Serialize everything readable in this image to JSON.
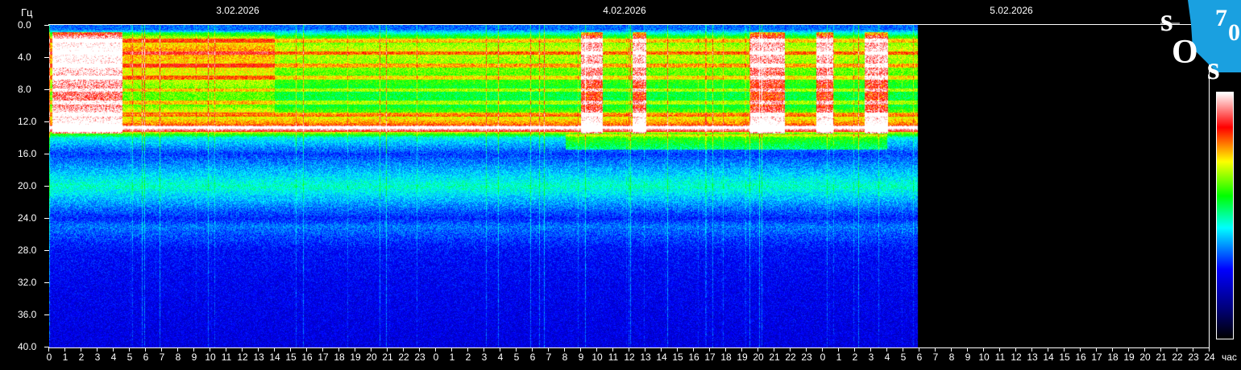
{
  "chart_data": {
    "type": "heatmap",
    "ylabel": "Гц",
    "xlabel": "час",
    "ylim": [
      0,
      40
    ],
    "y_ticks": [
      "0.0",
      "4.0",
      "8.0",
      "12.0",
      "16.0",
      "20.0",
      "24.0",
      "28.0",
      "32.0",
      "36.0",
      "40.0"
    ],
    "x_ticks": [
      "0",
      "1",
      "2",
      "3",
      "4",
      "5",
      "6",
      "7",
      "8",
      "9",
      "10",
      "11",
      "12",
      "13",
      "14",
      "15",
      "16",
      "17",
      "18",
      "19",
      "20",
      "21",
      "22",
      "23",
      "0",
      "1",
      "2",
      "3",
      "4",
      "5",
      "6",
      "7",
      "8",
      "9",
      "10",
      "11",
      "12",
      "13",
      "14",
      "15",
      "16",
      "17",
      "18",
      "19",
      "20",
      "21",
      "22",
      "23",
      "0",
      "1",
      "2",
      "3",
      "4",
      "5",
      "6",
      "7",
      "8",
      "9",
      "10",
      "11",
      "12",
      "13",
      "14",
      "15",
      "16",
      "17",
      "18",
      "19",
      "20",
      "21",
      "22",
      "23",
      "24"
    ],
    "dates": [
      "3.02.2026",
      "4.02.2026",
      "5.02.2026"
    ],
    "xlim_hours": [
      0,
      72
    ],
    "data_end_hour": 53.9,
    "colorscale": [
      "#000000",
      "#00007a",
      "#0000ff",
      "#00ffff",
      "#00ff00",
      "#ffff00",
      "#ff0000",
      "#ffffff"
    ],
    "frequency_profile": {
      "frequencies_hz": [
        0.5,
        1.5,
        3,
        5,
        7,
        8,
        10,
        12.8,
        14,
        16,
        20,
        24,
        25,
        28,
        32,
        36,
        40
      ],
      "relative_intensity": [
        0.35,
        0.6,
        0.7,
        0.65,
        0.6,
        0.55,
        0.55,
        0.85,
        0.45,
        0.32,
        0.48,
        0.3,
        0.36,
        0.28,
        0.26,
        0.25,
        0.24
      ]
    },
    "high_activity_periods_hours": [
      [
        0.2,
        4.5
      ],
      [
        33,
        34.3
      ],
      [
        36.2,
        37
      ],
      [
        43.5,
        45.6
      ],
      [
        47.6,
        48.6
      ],
      [
        50.6,
        52
      ]
    ]
  },
  "logo": {
    "text": "SOS 70",
    "color": "#1aa0e0"
  }
}
